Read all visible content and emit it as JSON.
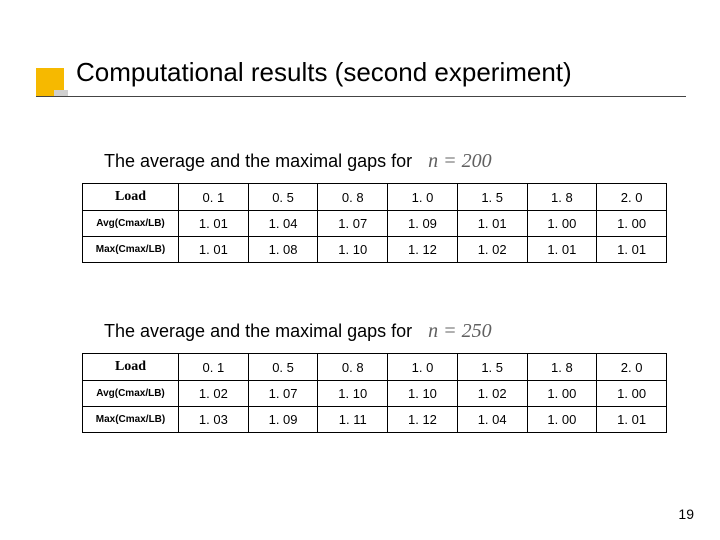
{
  "title": "Computational results (second experiment)",
  "page_number": "19",
  "accent_color": "#f6b900",
  "table_border_color": "#000000",
  "background_color": "#ffffff",
  "section1": {
    "caption": "The average and the maximal gaps for",
    "formula": "n = 200",
    "row_header_label": "Load",
    "columns": [
      "0. 1",
      "0. 5",
      "0. 8",
      "1. 0",
      "1. 5",
      "1. 8",
      "2. 0"
    ],
    "rows": [
      {
        "label": "Avg(Cmax/LB)",
        "cells": [
          "1. 01",
          "1. 04",
          "1. 07",
          "1. 09",
          "1. 01",
          "1. 00",
          "1. 00"
        ]
      },
      {
        "label": "Max(Cmax/LB)",
        "cells": [
          "1. 01",
          "1. 08",
          "1. 10",
          "1. 12",
          "1. 02",
          "1. 01",
          "1. 01"
        ]
      }
    ]
  },
  "section2": {
    "caption": "The average and the maximal gaps for",
    "formula": "n = 250",
    "row_header_label": "Load",
    "columns": [
      "0. 1",
      "0. 5",
      "0. 8",
      "1. 0",
      "1. 5",
      "1. 8",
      "2. 0"
    ],
    "rows": [
      {
        "label": "Avg(Cmax/LB)",
        "cells": [
          "1. 02",
          "1. 07",
          "1. 10",
          "1. 10",
          "1. 02",
          "1. 00",
          "1. 00"
        ]
      },
      {
        "label": "Max(Cmax/LB)",
        "cells": [
          "1. 03",
          "1. 09",
          "1. 11",
          "1. 12",
          "1. 04",
          "1. 00",
          "1. 01"
        ]
      }
    ]
  }
}
